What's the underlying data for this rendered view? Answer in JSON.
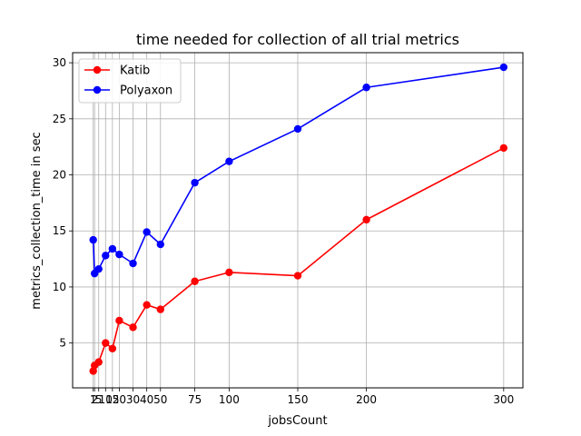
{
  "chart_data": {
    "type": "line",
    "title": "time needed for collection of all trial metrics",
    "xlabel": "jobsCount",
    "ylabel": "metrics_collection_time in sec",
    "x": [
      1,
      2,
      5,
      10,
      15,
      20,
      30,
      40,
      50,
      75,
      100,
      150,
      200,
      300
    ],
    "xticks": [
      1,
      2,
      5,
      10,
      15,
      20,
      30,
      40,
      50,
      75,
      100,
      150,
      200,
      300
    ],
    "xtick_labels": [
      "1",
      "2",
      "5",
      "10",
      "15",
      "20",
      "30",
      "40",
      "50",
      "75",
      "100",
      "150",
      "200",
      "300"
    ],
    "yticks": [
      5,
      10,
      15,
      20,
      25,
      30
    ],
    "xlim": [
      -14,
      314
    ],
    "ylim": [
      1.0,
      30.9
    ],
    "grid": "x-and-y",
    "legend_position": "top-left",
    "series": [
      {
        "name": "Katib",
        "color": "#ff0000",
        "values": [
          2.5,
          3.0,
          3.3,
          5.0,
          4.5,
          7.0,
          6.4,
          8.4,
          8.0,
          10.5,
          11.3,
          11.0,
          16.0,
          22.4
        ]
      },
      {
        "name": "Polyaxon",
        "color": "#0000ff",
        "values": [
          14.2,
          11.2,
          11.6,
          12.8,
          13.4,
          12.9,
          12.1,
          14.9,
          13.8,
          19.3,
          21.2,
          24.1,
          27.8,
          29.6
        ]
      }
    ]
  }
}
